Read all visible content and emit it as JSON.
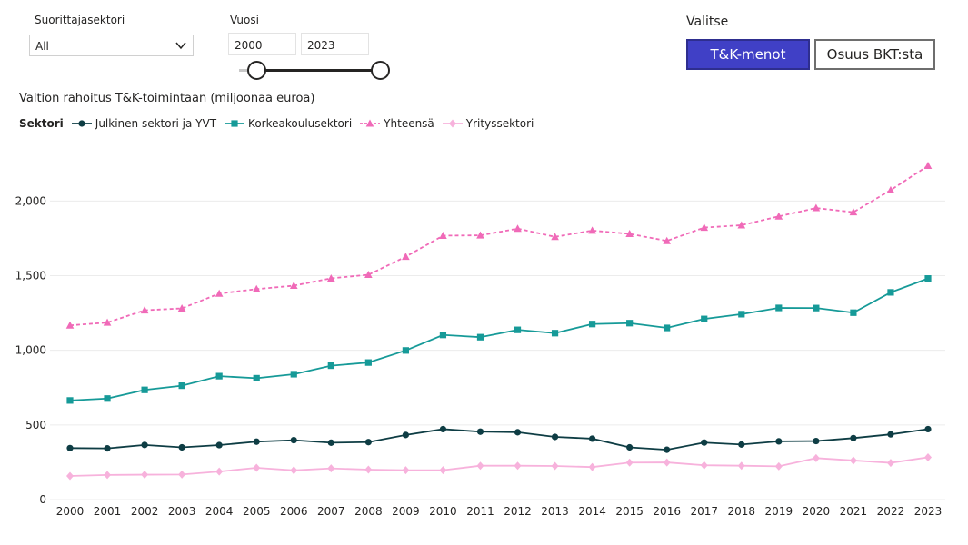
{
  "filters": {
    "sector_label": "Suorittajasektori",
    "sector_value": "All",
    "year_label": "Vuosi",
    "year_start": "2000",
    "year_end": "2023"
  },
  "selector": {
    "label": "Valitse",
    "options": [
      "T&K-menot",
      "Osuus BKT:sta"
    ],
    "active": "T&K-menot"
  },
  "chart_data": {
    "type": "line",
    "title": "Valtion rahoitus T&K-toimintaan (miljoonaa euroa)",
    "legend_title": "Sektori",
    "legend_position": "top-left",
    "grid": true,
    "x": [
      "2000",
      "2001",
      "2002",
      "2003",
      "2004",
      "2005",
      "2006",
      "2007",
      "2008",
      "2009",
      "2010",
      "2011",
      "2012",
      "2013",
      "2014",
      "2015",
      "2016",
      "2017",
      "2018",
      "2019",
      "2020",
      "2021",
      "2022",
      "2023"
    ],
    "ylim": [
      0,
      2300
    ],
    "yticks": [
      0,
      500,
      1000,
      1500,
      2000
    ],
    "ytick_labels": [
      "0",
      "500",
      "1,000",
      "1,500",
      "2,000"
    ],
    "series": [
      {
        "name": "Julkinen sektori ja YVT",
        "color": "#0e3d44",
        "marker": "circle",
        "dash": "solid",
        "values": [
          345,
          343,
          366,
          350,
          365,
          388,
          398,
          381,
          385,
          433,
          472,
          455,
          451,
          420,
          408,
          350,
          334,
          382,
          369,
          390,
          392,
          412,
          437,
          472
        ]
      },
      {
        "name": "Korkeakoulusektori",
        "color": "#169a98",
        "marker": "square",
        "dash": "solid",
        "values": [
          664,
          677,
          735,
          763,
          827,
          813,
          840,
          897,
          918,
          999,
          1103,
          1088,
          1137,
          1115,
          1176,
          1182,
          1150,
          1210,
          1242,
          1284,
          1283,
          1252,
          1388,
          1481
        ]
      },
      {
        "name": "Yhteensä",
        "color": "#f06ab8",
        "marker": "triangle",
        "dash": "dashed",
        "values": [
          1167,
          1186,
          1268,
          1281,
          1380,
          1410,
          1433,
          1482,
          1506,
          1627,
          1768,
          1770,
          1815,
          1760,
          1802,
          1780,
          1733,
          1822,
          1838,
          1897,
          1953,
          1925,
          2073,
          2236
        ]
      },
      {
        "name": "Yrityssektori",
        "color": "#f7b2dc",
        "marker": "diamond",
        "dash": "solid",
        "values": [
          158,
          165,
          167,
          168,
          188,
          213,
          196,
          209,
          201,
          197,
          197,
          227,
          227,
          225,
          218,
          248,
          249,
          230,
          227,
          223,
          278,
          262,
          246,
          283
        ]
      }
    ]
  }
}
